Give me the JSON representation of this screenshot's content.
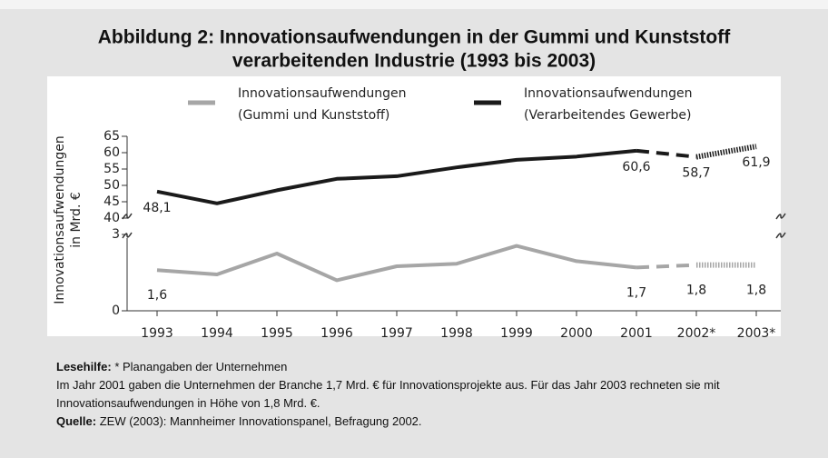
{
  "chart_data": {
    "type": "line",
    "title_lines": [
      "Abbildung 2: Innovationsaufwendungen in der Gummi und Kunststoff",
      "verarbeitenden Industrie (1993 bis 2003)"
    ],
    "ylabel_lines": [
      "Innovationsaufwendungen",
      "in Mrd. €"
    ],
    "categories": [
      "1993",
      "1994",
      "1995",
      "1996",
      "1997",
      "1998",
      "1999",
      "2000",
      "2001",
      "2002*",
      "2003*"
    ],
    "ylim": [
      40,
      65
    ],
    "yticks": [
      40,
      45,
      50,
      55,
      60,
      65
    ],
    "y2lim": [
      0,
      3
    ],
    "y2ticks": [
      0,
      3
    ],
    "broken_axis": true,
    "segment_styles": [
      "solid",
      "solid",
      "solid",
      "solid",
      "solid",
      "solid",
      "solid",
      "solid",
      "solid",
      "dashed",
      "dotted"
    ],
    "series": [
      {
        "name": [
          "Innovationsaufwendungen",
          "(Gummi und Kunststoff)"
        ],
        "color": "#a6a6a6",
        "axis": "y2",
        "values": [
          1.6,
          1.43,
          2.25,
          1.2,
          1.75,
          1.85,
          2.55,
          1.95,
          1.7,
          1.8,
          1.8
        ],
        "value_labels": [
          "1,6",
          null,
          null,
          null,
          null,
          null,
          null,
          null,
          "1,7",
          "1,8",
          "1,8"
        ]
      },
      {
        "name": [
          "Innovationsaufwendungen",
          "(Verarbeitendes Gewerbe)"
        ],
        "color": "#1a1a1a",
        "values": [
          48.1,
          44.5,
          48.5,
          52,
          52.8,
          55.5,
          57.8,
          58.8,
          60.6,
          58.7,
          61.9
        ],
        "value_labels": [
          "48,1",
          null,
          null,
          null,
          null,
          null,
          null,
          null,
          "60,6",
          "58,7",
          "61,9"
        ]
      }
    ]
  },
  "notes": [
    {
      "label": "Lesehilfe:",
      "text": "* Planangaben der Unternehmen"
    },
    {
      "text": "Im Jahr 2001 gaben die Unternehmen der Branche 1,7 Mrd. € für Innovationsprojekte aus. Für das Jahr 2003 rechneten sie mit Innovationsaufwendungen in Höhe von 1,8 Mrd. €."
    },
    {
      "label": "Quelle:",
      "text": "ZEW (2003): Mannheimer Innovationspanel, Befragung 2002."
    }
  ]
}
